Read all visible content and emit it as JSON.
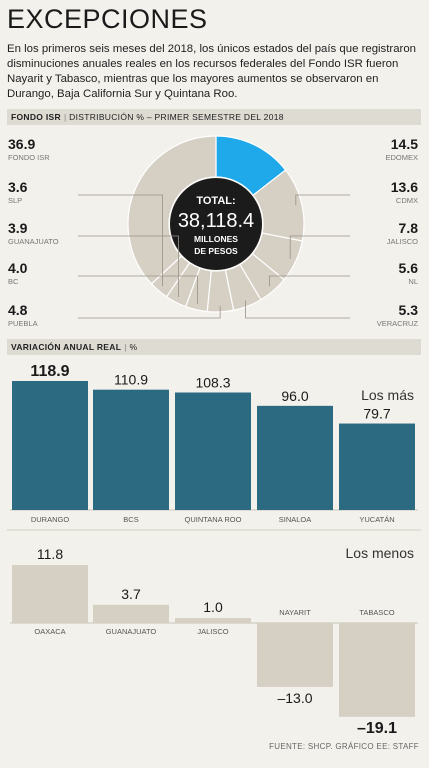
{
  "header": {
    "title": "EXCEPCIONES",
    "intro": "En los primeros seis meses del 2018, los únicos estados del país que registraron disminuciones anuales reales en los recursos federales del Fondo ISR fueron Nayarit y Tabasco, mientras que los mayores aumentos se observaron en Durango, Baja California Sur y Quintana Roo."
  },
  "pie_section": {
    "key": "FONDO ISR",
    "desc": "DISTRIBUCIÓN % – PRIMER SEMESTRE DEL 2018"
  },
  "bar_section": {
    "key": "VARIACIÓN ANUAL REAL",
    "desc": "%"
  },
  "center": {
    "label": "TOTAL:",
    "value": "38,118.4",
    "unit1": "MILLONES",
    "unit2": "DE PESOS"
  },
  "colors": {
    "teal": "#2c6a82",
    "tan": "#d6cfc4",
    "blue": "#1fa9ea",
    "dark": "#1b1b1b"
  },
  "chart_data": [
    {
      "type": "pie",
      "title": "FONDO ISR",
      "subtitle": "DISTRIBUCIÓN % – PRIMER SEMESTRE DEL 2018",
      "slices": [
        {
          "label": "EDOMEX",
          "value": "14.5"
        },
        {
          "label": "CDMX",
          "value": "13.6"
        },
        {
          "label": "JALISCO",
          "value": "7.8"
        },
        {
          "label": "NL",
          "value": "5.6"
        },
        {
          "label": "VERACRUZ",
          "value": "5.3"
        },
        {
          "label": "PUEBLA",
          "value": "4.8"
        },
        {
          "label": "BC",
          "value": "4.0"
        },
        {
          "label": "GUANAJUATO",
          "value": "3.9"
        },
        {
          "label": "SLP",
          "value": "3.6"
        },
        {
          "label": "FONDO ISR",
          "value": "36.9"
        }
      ]
    },
    {
      "type": "bar",
      "title": "VARIACIÓN ANUAL REAL",
      "subtitle": "%",
      "label": "Los más",
      "categories": [
        "DURANGO",
        "BCS",
        "QUINTANA ROO",
        "SINALOA",
        "YUCATÁN"
      ],
      "values": [
        "118.9",
        "110.9",
        "108.3",
        "96.0",
        "79.7"
      ]
    },
    {
      "type": "bar",
      "label": "Los menos",
      "categories": [
        "OAXACA",
        "GUANAJUATO",
        "JALISCO",
        "NAYARIT",
        "TABASCO"
      ],
      "values": [
        "11.8",
        "3.7",
        "1.0",
        "–13.0",
        "–19.1"
      ]
    }
  ],
  "footer": {
    "source": "FUENTE: SHCP. GRÁFICO EE: STAFF"
  }
}
